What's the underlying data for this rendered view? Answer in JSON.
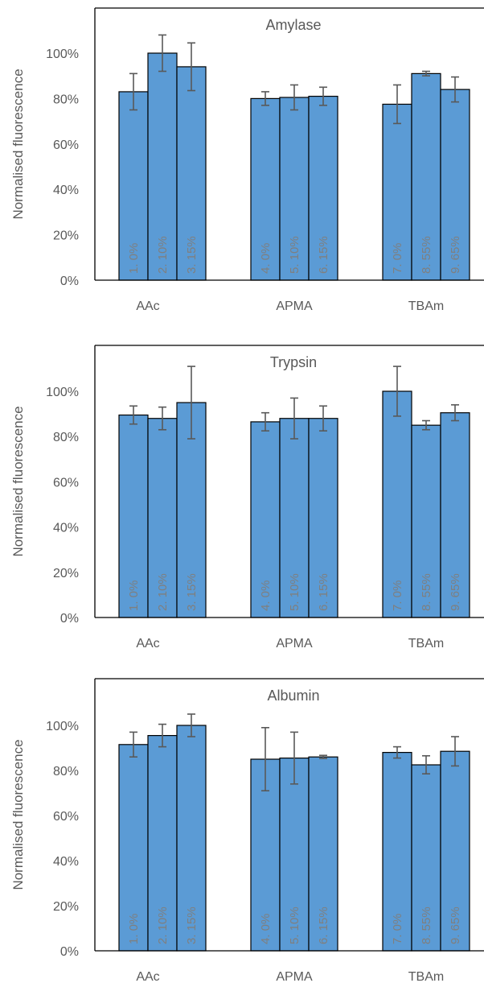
{
  "colors": {
    "bar": "#5b9bd5",
    "bar_edge": "#000000",
    "error_bar": "#595959",
    "axis": "#000000",
    "text": "#595959"
  },
  "chart_data": [
    {
      "type": "bar",
      "title": "Amylase",
      "ylabel": "Normalised fluorescence",
      "ylim": [
        0,
        100
      ],
      "yticks": [
        "0%",
        "20%",
        "40%",
        "60%",
        "80%",
        "100%"
      ],
      "groups": [
        "AAc",
        "APMA",
        "TBAm"
      ],
      "bars": [
        {
          "group": "AAc",
          "label": "1. 0%",
          "value": 83,
          "error": 8
        },
        {
          "group": "AAc",
          "label": "2. 10%",
          "value": 100,
          "error": 8
        },
        {
          "group": "AAc",
          "label": "3. 15%",
          "value": 94,
          "error": 10.5
        },
        {
          "group": "APMA",
          "label": "4. 0%",
          "value": 80,
          "error": 3
        },
        {
          "group": "APMA",
          "label": "5. 10%",
          "value": 80.5,
          "error": 5.5
        },
        {
          "group": "APMA",
          "label": "6. 15%",
          "value": 81,
          "error": 4
        },
        {
          "group": "TBAm",
          "label": "7. 0%",
          "value": 77.5,
          "error": 8.5
        },
        {
          "group": "TBAm",
          "label": "8. 55%",
          "value": 91,
          "error": 1
        },
        {
          "group": "TBAm",
          "label": "9. 65%",
          "value": 84,
          "error": 5.5
        }
      ]
    },
    {
      "type": "bar",
      "title": "Trypsin",
      "ylabel": "Normalised fluorescence",
      "ylim": [
        0,
        100
      ],
      "yticks": [
        "0%",
        "20%",
        "40%",
        "60%",
        "80%",
        "100%"
      ],
      "groups": [
        "AAc",
        "APMA",
        "TBAm"
      ],
      "bars": [
        {
          "group": "AAc",
          "label": "1. 0%",
          "value": 89.5,
          "error": 4
        },
        {
          "group": "AAc",
          "label": "2. 10%",
          "value": 88,
          "error": 5
        },
        {
          "group": "AAc",
          "label": "3. 15%",
          "value": 95,
          "error": 16
        },
        {
          "group": "APMA",
          "label": "4. 0%",
          "value": 86.5,
          "error": 4
        },
        {
          "group": "APMA",
          "label": "5. 10%",
          "value": 88,
          "error": 9
        },
        {
          "group": "APMA",
          "label": "6. 15%",
          "value": 88,
          "error": 5.5
        },
        {
          "group": "TBAm",
          "label": "7. 0%",
          "value": 100,
          "error": 11
        },
        {
          "group": "TBAm",
          "label": "8. 55%",
          "value": 85,
          "error": 2
        },
        {
          "group": "TBAm",
          "label": "9. 65%",
          "value": 90.5,
          "error": 3.5
        }
      ]
    },
    {
      "type": "bar",
      "title": "Albumin",
      "ylabel": "Normalised fluorescence",
      "ylim": [
        0,
        100
      ],
      "yticks": [
        "0%",
        "20%",
        "40%",
        "60%",
        "80%",
        "100%"
      ],
      "groups": [
        "AAc",
        "APMA",
        "TBAm"
      ],
      "bars": [
        {
          "group": "AAc",
          "label": "1. 0%",
          "value": 91.5,
          "error": 5.5
        },
        {
          "group": "AAc",
          "label": "2. 10%",
          "value": 95.5,
          "error": 5
        },
        {
          "group": "AAc",
          "label": "3. 15%",
          "value": 100,
          "error": 5
        },
        {
          "group": "APMA",
          "label": "4. 0%",
          "value": 85,
          "error": 14
        },
        {
          "group": "APMA",
          "label": "5. 10%",
          "value": 85.5,
          "error": 11.5
        },
        {
          "group": "APMA",
          "label": "6. 15%",
          "value": 86,
          "error": 0.7
        },
        {
          "group": "TBAm",
          "label": "7. 0%",
          "value": 88,
          "error": 2.5
        },
        {
          "group": "TBAm",
          "label": "8. 55%",
          "value": 82.5,
          "error": 4
        },
        {
          "group": "TBAm",
          "label": "9. 65%",
          "value": 88.5,
          "error": 6.5
        }
      ]
    }
  ]
}
